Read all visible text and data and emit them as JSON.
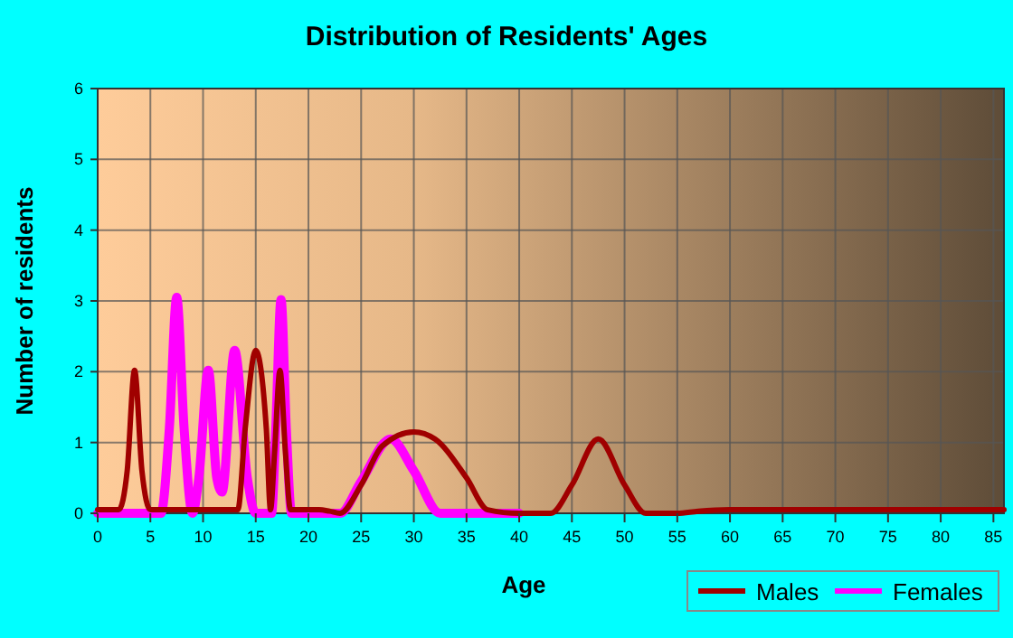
{
  "chart_data": {
    "type": "line",
    "title": "Distribution of Residents' Ages",
    "xlabel": "Age",
    "ylabel": "Number of residents",
    "xlim": [
      0,
      86
    ],
    "xticks": [
      0,
      5,
      10,
      15,
      20,
      25,
      30,
      35,
      40,
      45,
      50,
      55,
      60,
      65,
      70,
      75,
      80,
      85
    ],
    "ylim": [
      0,
      6
    ],
    "yticks": [
      0,
      1,
      2,
      3,
      4,
      5,
      6
    ],
    "grid": true,
    "legend": "bottom right",
    "marker": "none",
    "line_style": "solid",
    "series": [
      {
        "name": "Males",
        "color": "#a00000",
        "x": [
          0,
          2,
          2.8,
          3.5,
          4.2,
          5,
          8,
          12,
          13.3,
          14,
          15,
          16,
          16.4,
          16.8,
          17.3,
          17.8,
          18.3,
          19,
          20,
          21,
          22,
          23,
          25,
          27,
          30,
          32,
          35,
          37,
          40,
          43,
          45,
          47.5,
          50,
          52,
          55,
          57,
          60,
          70,
          80,
          86
        ],
        "values": [
          0.05,
          0.05,
          0.6,
          2.02,
          0.6,
          0.05,
          0.05,
          0.05,
          0.05,
          1.2,
          2.3,
          1.2,
          0.05,
          0.9,
          2.02,
          0.9,
          0.05,
          0.05,
          0.05,
          0.05,
          0.03,
          0,
          0.4,
          0.95,
          1.15,
          1.05,
          0.5,
          0.05,
          0,
          0,
          0.4,
          1.05,
          0.4,
          0,
          0,
          0.03,
          0.05,
          0.05,
          0.05,
          0.05
        ]
      },
      {
        "name": "Females",
        "color": "#ff00ff",
        "x": [
          0,
          6,
          6.8,
          7.5,
          8.2,
          9,
          9.6,
          10.5,
          11.3,
          11.8,
          13,
          14.2,
          15,
          16.5,
          16.9,
          17.4,
          17.9,
          18.4,
          20,
          23,
          25,
          27.8,
          30,
          32.5,
          35,
          40
        ],
        "values": [
          0,
          0,
          1.2,
          3.05,
          1.2,
          0,
          0.5,
          2.02,
          0.5,
          0.3,
          2.3,
          0.5,
          0,
          0,
          1.2,
          3.02,
          1.2,
          0,
          0,
          0,
          0.45,
          1.05,
          0.6,
          0,
          0,
          0
        ]
      }
    ]
  }
}
